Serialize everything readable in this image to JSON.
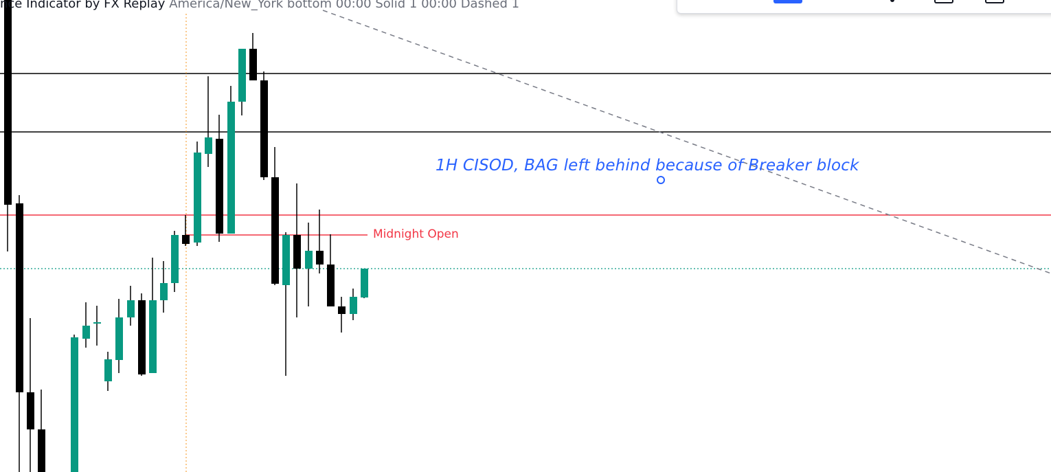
{
  "indicator": {
    "name": "nce Indicator by FX Replay",
    "params": "America/New_York bottom 00:00 Solid 1 00:00 Dashed 1"
  },
  "drawings": {
    "note_text": "1H CISOD, BAG left behind because of Breaker block",
    "midnight_open_label": "Midnight Open"
  },
  "colors": {
    "bull": "#089981",
    "bear": "#000000",
    "midnight_line": "#f23645",
    "note_text": "#2962ff",
    "session_line": "#f7931a",
    "price_line": "#089981",
    "trend_line": "#787b86"
  },
  "toolbar": {
    "icons": [
      "color-swatch-icon",
      "drag-dot-icon",
      "square-icon",
      "square-icon"
    ]
  }
}
